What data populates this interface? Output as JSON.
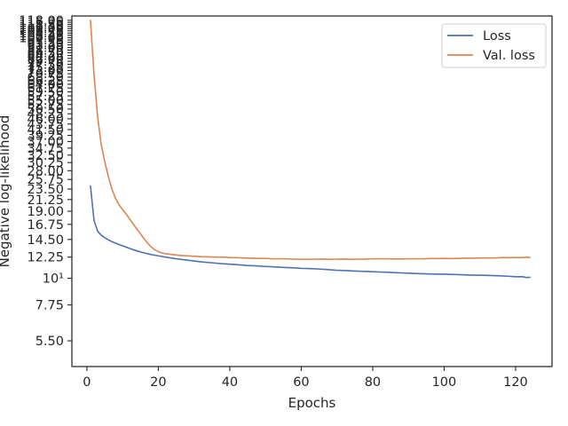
{
  "chart_data": {
    "type": "line",
    "title": "",
    "xlabel": "Epochs",
    "ylabel": "Negative log-likelihood",
    "yscale": "log",
    "xlim": [
      -4.2,
      130.2
    ],
    "ylim": [
      4.3,
      123
    ],
    "grid": false,
    "legend_position": "top-right",
    "x_ticks": [
      0,
      20,
      40,
      60,
      80,
      100,
      120
    ],
    "x_tick_labels": [
      "0",
      "20",
      "40",
      "60",
      "80",
      "100",
      "120"
    ],
    "y_ticks": [
      5.5,
      7.75,
      10,
      12.25,
      14.5,
      16.75,
      19,
      21.25,
      23.5,
      25.75,
      28,
      30.25,
      32.5,
      34.75,
      37,
      39.25,
      41.5,
      43.75,
      46,
      48.25,
      50.5,
      52.75,
      55,
      57.25,
      59.5,
      61.75,
      64,
      66.25,
      68.5,
      70.75,
      73,
      75.25,
      77.5,
      79.75,
      82,
      84.25,
      86.5,
      88.75,
      91,
      93.25,
      95.5,
      97.75,
      100,
      102.25,
      104.5,
      106.75,
      109,
      111.25,
      113.5,
      115.75,
      118
    ],
    "y_tick_labels": [
      "5.50",
      "7.75",
      "10¹",
      "12.25",
      "14.50",
      "16.75",
      "19.00",
      "21.25",
      "23.50",
      "25.75",
      "28.00",
      "30.25",
      "32.50",
      "34.75",
      "37.00",
      "39.25",
      "41.50",
      "43.75",
      "46.00",
      "48.25",
      "50.50",
      "52.75",
      "55.00",
      "57.25",
      "59.50",
      "61.75",
      "64.00",
      "66.25",
      "68.50",
      "70.75",
      "73.00",
      "75.25",
      "77.50",
      "79.75",
      "82.00",
      "84.25",
      "86.50",
      "88.75",
      "91.00",
      "93.25",
      "95.50",
      "97.75",
      "100.00",
      "102.25",
      "104.50",
      "106.75",
      "109.00",
      "111.25",
      "113.50",
      "115.75",
      "118.00"
    ],
    "series": [
      {
        "name": "Loss",
        "color": "#4c72b0",
        "x": [
          1,
          2,
          3,
          4,
          5,
          6,
          7,
          8,
          9,
          10,
          12,
          14,
          16,
          18,
          20,
          22,
          25,
          28,
          30,
          32,
          35,
          38,
          40,
          42,
          45,
          48,
          50,
          53,
          55,
          58,
          60,
          62,
          65,
          68,
          70,
          72,
          75,
          78,
          80,
          82,
          85,
          88,
          90,
          92,
          95,
          98,
          100,
          102,
          105,
          108,
          110,
          112,
          115,
          118,
          120,
          122,
          123,
          124
        ],
        "y": [
          24.2,
          17.4,
          15.7,
          15.1,
          14.75,
          14.45,
          14.2,
          14.0,
          13.8,
          13.65,
          13.3,
          13.0,
          12.75,
          12.55,
          12.4,
          12.25,
          12.05,
          11.9,
          11.8,
          11.7,
          11.6,
          11.5,
          11.45,
          11.4,
          11.3,
          11.25,
          11.2,
          11.15,
          11.1,
          11.05,
          11.0,
          10.98,
          10.93,
          10.85,
          10.8,
          10.77,
          10.72,
          10.68,
          10.65,
          10.62,
          10.58,
          10.53,
          10.5,
          10.47,
          10.44,
          10.4,
          10.4,
          10.38,
          10.35,
          10.3,
          10.3,
          10.28,
          10.25,
          10.2,
          10.15,
          10.15,
          10.08,
          10.1
        ]
      },
      {
        "name": "Val. loss",
        "color": "#dd8452",
        "x": [
          1,
          2,
          3,
          4,
          5,
          6,
          7,
          8,
          9,
          10,
          11,
          12,
          13,
          14,
          15,
          16,
          17,
          18,
          19,
          20,
          21,
          22,
          24,
          26,
          28,
          30,
          32,
          34,
          36,
          38,
          40,
          42,
          44,
          46,
          48,
          50,
          52,
          54,
          56,
          58,
          60,
          62,
          64,
          66,
          68,
          70,
          72,
          74,
          76,
          78,
          80,
          82,
          84,
          86,
          88,
          90,
          92,
          94,
          96,
          98,
          100,
          102,
          104,
          106,
          108,
          110,
          112,
          114,
          116,
          118,
          120,
          122,
          123,
          124
        ],
        "y": [
          118,
          70,
          47,
          36,
          30.5,
          26.5,
          23.5,
          21.5,
          20.2,
          19.3,
          18.5,
          17.6,
          16.8,
          16.0,
          15.3,
          14.6,
          14.0,
          13.5,
          13.15,
          12.9,
          12.75,
          12.65,
          12.55,
          12.45,
          12.4,
          12.35,
          12.3,
          12.28,
          12.25,
          12.25,
          12.2,
          12.18,
          12.15,
          12.12,
          12.1,
          12.1,
          12.05,
          12.05,
          12.05,
          12.0,
          12.0,
          12.0,
          12.0,
          12.02,
          12.0,
          12.0,
          12.02,
          12.0,
          12.0,
          12.02,
          12.05,
          12.05,
          12.05,
          12.03,
          12.03,
          12.05,
          12.05,
          12.05,
          12.08,
          12.08,
          12.1,
          12.08,
          12.1,
          12.12,
          12.12,
          12.15,
          12.15,
          12.15,
          12.18,
          12.18,
          12.2,
          12.2,
          12.25,
          12.2
        ]
      }
    ]
  }
}
